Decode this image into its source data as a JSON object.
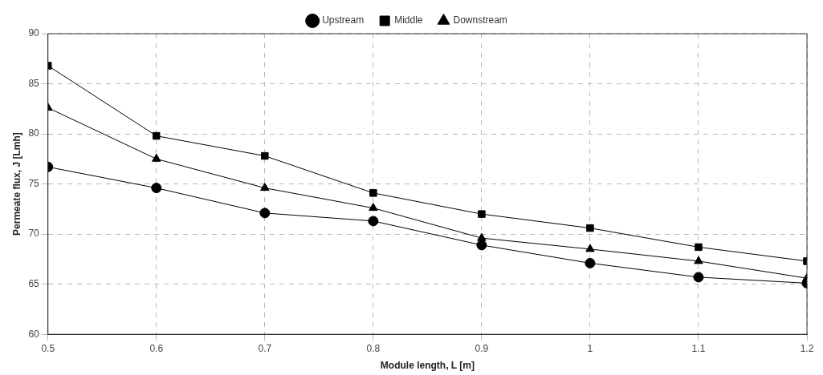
{
  "chart_data": {
    "type": "line",
    "xlabel": "Module length, L [m]",
    "ylabel": "Permeate flux, J [Lmh]",
    "x": [
      0.5,
      0.6,
      0.7,
      0.8,
      0.9,
      1,
      1.1,
      1.2
    ],
    "series": [
      {
        "name": "Upstream",
        "color": "#000000",
        "marker": "circle",
        "values": [
          76.7,
          74.6,
          72.1,
          71.3,
          68.9,
          67.1,
          65.7,
          65.1
        ]
      },
      {
        "name": "Middle",
        "color": "#000000",
        "marker": "square",
        "values": [
          86.8,
          79.8,
          77.8,
          74.1,
          72.0,
          70.6,
          68.7,
          67.3
        ]
      },
      {
        "name": "Downstream",
        "color": "#000000",
        "marker": "triangle",
        "values": [
          82.6,
          77.5,
          74.6,
          72.6,
          69.6,
          68.5,
          67.3,
          65.6
        ]
      }
    ],
    "xlim": [
      0.5,
      1.2
    ],
    "xticks": [
      0.5,
      0.6,
      0.7,
      0.8,
      0.9,
      1,
      1.1,
      1.2
    ],
    "ylim": [
      60,
      90
    ],
    "yticks": [
      60,
      65,
      70,
      75,
      80,
      85,
      90
    ],
    "grid": true,
    "legend": "top",
    "line_style": "solid"
  }
}
